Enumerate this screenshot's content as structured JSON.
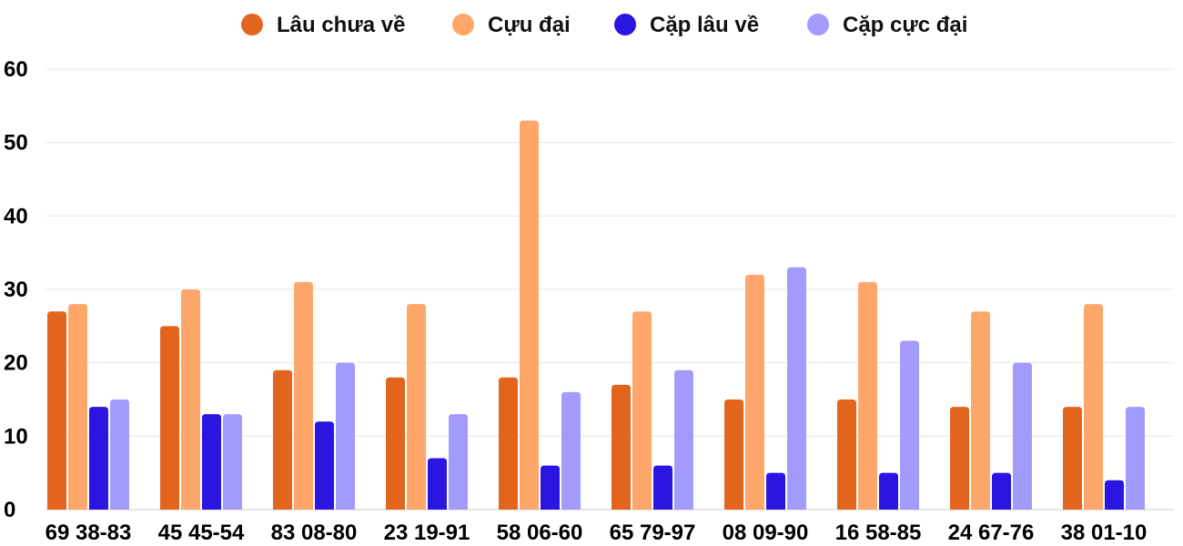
{
  "chart_data": {
    "type": "bar",
    "title": "",
    "xlabel": "",
    "ylabel": "",
    "ylim": [
      0,
      60
    ],
    "yticks": [
      0,
      10,
      20,
      30,
      40,
      50,
      60
    ],
    "grid": true,
    "legend_position": "top-center",
    "categories": [
      "69 38-83",
      "45 45-54",
      "83 08-80",
      "23 19-91",
      "58 06-60",
      "65 79-97",
      "08 09-90",
      "16 58-85",
      "24 67-76",
      "38 01-10"
    ],
    "series": [
      {
        "name": "Lâu chưa về",
        "color": "#E3651D",
        "values": [
          27,
          25,
          19,
          18,
          18,
          17,
          15,
          15,
          14,
          14
        ]
      },
      {
        "name": "Cựu đại",
        "color": "#FFA76B",
        "values": [
          28,
          30,
          31,
          28,
          53,
          27,
          32,
          31,
          27,
          28
        ]
      },
      {
        "name": "Cặp lâu về",
        "color": "#2A16E0",
        "values": [
          14,
          13,
          12,
          7,
          6,
          6,
          5,
          5,
          5,
          4
        ]
      },
      {
        "name": "Cặp cực đại",
        "color": "#A29BFC",
        "values": [
          15,
          13,
          20,
          13,
          16,
          19,
          33,
          23,
          20,
          14
        ]
      }
    ]
  }
}
